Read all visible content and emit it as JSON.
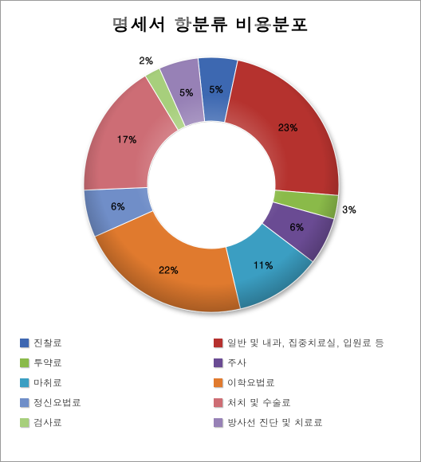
{
  "title": "명세서 항분류 비용분포",
  "chart": {
    "type": "donut",
    "background_color": "#ffffff",
    "title_fontsize": 22,
    "label_fontsize": 12,
    "outer_radius": 160,
    "inner_radius": 80,
    "start_angle_deg": -96,
    "slices": [
      {
        "key": "진찰료",
        "value": 5,
        "color": "#3e67b1",
        "label": "5%"
      },
      {
        "key": "일반 및 내과, 집중치료실, 입원료 등",
        "value": 23,
        "color": "#b5302e",
        "label": "23%"
      },
      {
        "key": "투약료",
        "value": 3,
        "color": "#8aba4a",
        "label": "3%"
      },
      {
        "key": "주사",
        "value": 6,
        "color": "#6a4b93",
        "label": "6%"
      },
      {
        "key": "마취료",
        "value": 11,
        "color": "#3a9ec2",
        "label": "11%"
      },
      {
        "key": "이학요법료",
        "value": 22,
        "color": "#e07a2e",
        "label": "22%"
      },
      {
        "key": "정신요법료",
        "value": 6,
        "color": "#6f8ec8",
        "label": "6%"
      },
      {
        "key": "처치 및 수술료",
        "value": 17,
        "color": "#cd6d74",
        "label": "17%"
      },
      {
        "key": "검사료",
        "value": 2,
        "color": "#a7cf7c",
        "label": "2%"
      },
      {
        "key": "방사선 진단 및 치료료",
        "value": 5,
        "color": "#9781b6",
        "label": "5%"
      }
    ]
  },
  "legend": [
    {
      "label": "진찰료",
      "color": "#3e67b1"
    },
    {
      "label": "일반 및 내과, 집중치료실, 입원료 등",
      "color": "#b5302e"
    },
    {
      "label": "투약료",
      "color": "#8aba4a"
    },
    {
      "label": "주사",
      "color": "#6a4b93"
    },
    {
      "label": "마취료",
      "color": "#3a9ec2"
    },
    {
      "label": "이학요법료",
      "color": "#e07a2e"
    },
    {
      "label": "정신요법료",
      "color": "#6f8ec8"
    },
    {
      "label": "처치 및 수술료",
      "color": "#cd6d74"
    },
    {
      "label": "검사료",
      "color": "#a7cf7c"
    },
    {
      "label": "방사선 진단 및 치료료",
      "color": "#9781b6"
    }
  ]
}
